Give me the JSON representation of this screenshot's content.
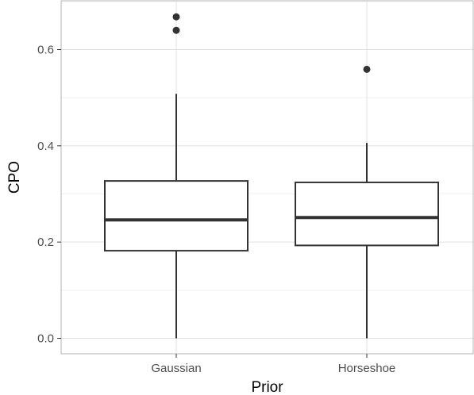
{
  "chart_data": {
    "type": "boxplot",
    "title": "",
    "xlabel": "Prior",
    "ylabel": "CPO",
    "ylim": [
      -0.02,
      0.7
    ],
    "yticks": [
      0.0,
      0.2,
      0.4,
      0.6
    ],
    "ytick_labels": [
      "0.0",
      "0.2",
      "0.4",
      "0.6"
    ],
    "grid": true,
    "legend": "none",
    "categories": [
      "Gaussian",
      "Horseshoe"
    ],
    "boxes": [
      {
        "category": "Gaussian",
        "whisker_low": 0.0,
        "q1": 0.182,
        "median": 0.246,
        "q3": 0.327,
        "whisker_high": 0.508,
        "outliers": [
          0.64,
          0.668
        ]
      },
      {
        "category": "Horseshoe",
        "whisker_low": 0.0,
        "q1": 0.193,
        "median": 0.251,
        "q3": 0.324,
        "whisker_high": 0.406,
        "outliers": [
          0.559
        ]
      }
    ],
    "colors": {
      "box_line": "#333333",
      "grid_major": "#e0e0e0",
      "grid_minor": "#f2f2f2",
      "panel_border": "#b3b3b3"
    }
  }
}
